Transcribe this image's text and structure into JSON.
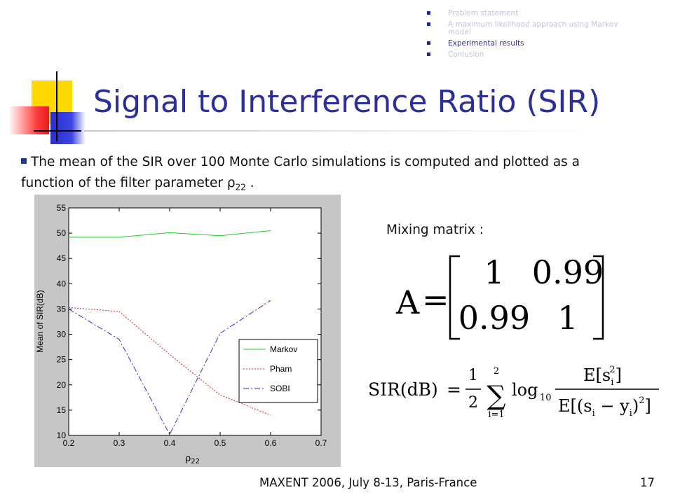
{
  "nav": {
    "items": [
      {
        "label": "Problem statement",
        "state": "dim"
      },
      {
        "label": "A maximum likelihood approach using Markov model",
        "state": "dim"
      },
      {
        "label": "Experimental results",
        "state": "active"
      },
      {
        "label": "Conlusion",
        "state": "dim"
      }
    ]
  },
  "slide": {
    "title": "Signal to Interference Ratio (SIR)",
    "bullet_pre": "The mean of the SIR over 100 Monte Carlo simulations is computed and plotted as a function of the filter parameter ρ",
    "bullet_sub": "22",
    "bullet_post": " .",
    "mixing_label": "Mixing matrix :",
    "matrix_lhs": "A",
    "matrix": [
      [
        "1",
        "0.99"
      ],
      [
        "0.99",
        "1"
      ]
    ],
    "sir_lhs": "SIR(dB)",
    "sir_coef_num": "1",
    "sir_coef_den": "2",
    "sir_sum_top": "2",
    "sir_sum_bottom": "i=1",
    "sir_log": "log",
    "sir_log_base": "10",
    "sir_num": "E[s",
    "sir_num_i": "i",
    "sir_num_pow": "2",
    "sir_num_close": "]",
    "sir_den": "E[(s",
    "sir_den_i": "i",
    "sir_den_minus": " − y",
    "sir_den_i2": "i",
    "sir_den_close": ")",
    "sir_den_pow": "2",
    "sir_den_end": "]"
  },
  "footer": {
    "text": "MAXENT 2006, July 8-13, Paris-France",
    "page": "17"
  },
  "colors": {
    "title": "#2b2f9c",
    "markov": "#22cc22",
    "pham": "#e02020",
    "sobi": "#2b2fe0"
  },
  "chart_data": {
    "type": "line",
    "title": "",
    "xlabel_main": "ρ",
    "xlabel_sub": "22",
    "ylabel": "Mean of SIR(dB)",
    "xlim": [
      0.2,
      0.7
    ],
    "ylim": [
      10,
      55
    ],
    "xticks": [
      "0.2",
      "0.3",
      "0.4",
      "0.5",
      "0.6",
      "0.7"
    ],
    "yticks": [
      "10",
      "15",
      "20",
      "25",
      "30",
      "35",
      "40",
      "45",
      "50",
      "55"
    ],
    "x": [
      0.2,
      0.3,
      0.4,
      0.5,
      0.6
    ],
    "series": [
      {
        "name": "Markov",
        "values": [
          49.2,
          49.2,
          50.1,
          49.5,
          50.5
        ],
        "style": "solid"
      },
      {
        "name": "Pham",
        "values": [
          35.3,
          34.5,
          26.0,
          18.0,
          14.0
        ],
        "style": "dotted"
      },
      {
        "name": "SOBI",
        "values": [
          35.0,
          29.0,
          10.2,
          30.2,
          36.7
        ],
        "style": "dashdot"
      }
    ],
    "legend_position": "bottom-right",
    "grid": false
  }
}
